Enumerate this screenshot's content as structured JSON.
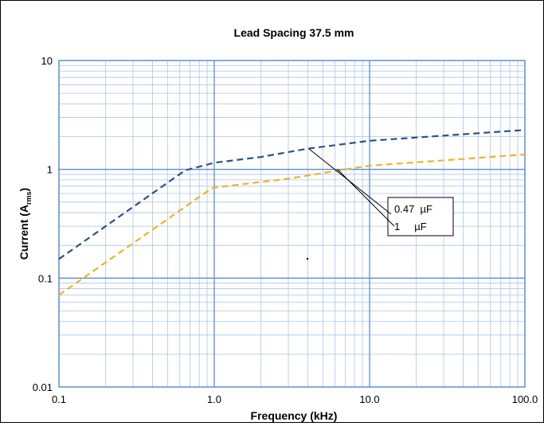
{
  "chart_data": {
    "type": "line",
    "title": "Lead Spacing 37.5 mm",
    "xlabel": "Frequency (kHz)",
    "ylabel": {
      "prefix": "Current (A",
      "sub": "rms",
      "suffix": ")"
    },
    "x_scale": "log",
    "y_scale": "log",
    "xlim": [
      0.1,
      100
    ],
    "ylim": [
      0.01,
      10
    ],
    "x_ticks": [
      {
        "value": 0.1,
        "label": "0.1"
      },
      {
        "value": 1,
        "label": "1.0"
      },
      {
        "value": 10,
        "label": "10.0"
      },
      {
        "value": 100,
        "label": "100.0"
      }
    ],
    "y_ticks": [
      {
        "value": 0.01,
        "label": "0.01"
      },
      {
        "value": 0.1,
        "label": "0.1"
      },
      {
        "value": 1,
        "label": "1"
      },
      {
        "value": 10,
        "label": "10"
      }
    ],
    "grid": true,
    "legend_position": "center-right",
    "series": [
      {
        "name": "0.47  µF",
        "color": "#2F4F8F",
        "dash": true,
        "points": [
          [
            0.1,
            0.15
          ],
          [
            0.65,
            0.98
          ],
          [
            1.0,
            1.15
          ],
          [
            2.0,
            1.3
          ],
          [
            4.0,
            1.55
          ],
          [
            10,
            1.83
          ],
          [
            100,
            2.3
          ]
        ]
      },
      {
        "name": "1     µF",
        "color": "#F0B323",
        "dash": true,
        "points": [
          [
            0.1,
            0.07
          ],
          [
            0.95,
            0.66
          ],
          [
            1.0,
            0.68
          ],
          [
            3.0,
            0.82
          ],
          [
            7.0,
            1.0
          ],
          [
            10,
            1.08
          ],
          [
            100,
            1.37
          ]
        ]
      }
    ]
  }
}
